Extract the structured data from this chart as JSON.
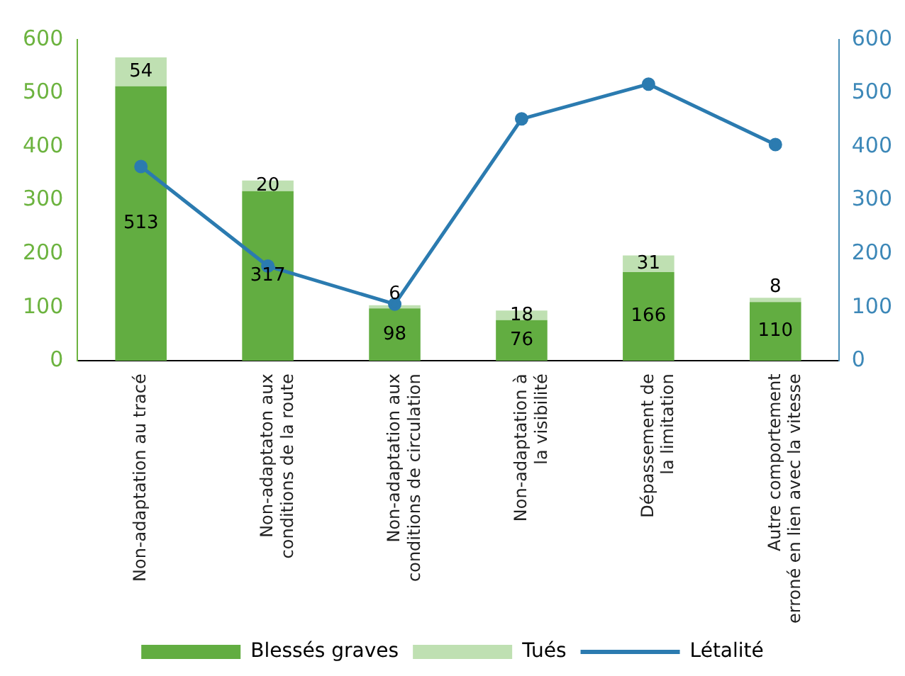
{
  "chart_data": {
    "type": "bar",
    "stacked": true,
    "categories": [
      "Non-adaptation au tracé",
      "Non-adaptaton aux\nconditions de la route",
      "Non-adaptation aux\nconditions de circulation",
      "Non-adaptation à\nla visibilité",
      "Dépassement de\nla limitation",
      "Autre comportement\nerroné en lien avec la vitesse"
    ],
    "series": [
      {
        "name": "Blessés graves",
        "color": "#62ad41",
        "values": [
          513,
          317,
          98,
          76,
          166,
          110
        ],
        "value_labels": [
          "513",
          "317",
          "98",
          "76",
          "166",
          "110"
        ]
      },
      {
        "name": "Tués",
        "color": "#bfe0b2",
        "values": [
          54,
          20,
          6,
          18,
          31,
          8
        ],
        "value_labels": [
          "54",
          "20",
          "6",
          "18",
          "31",
          "8"
        ]
      },
      {
        "name": "Létalité",
        "type": "line",
        "axis": "y2",
        "color": "#2b7bb0",
        "marker": "circle",
        "values": [
          363,
          177,
          106,
          452,
          517,
          404
        ]
      }
    ],
    "ylim": [
      0,
      600
    ],
    "yticks": [
      0,
      100,
      200,
      300,
      400,
      500,
      600
    ],
    "y2lim": [
      0,
      600
    ],
    "y2ticks": [
      0,
      100,
      200,
      300,
      400,
      500,
      600
    ],
    "grid": false,
    "legend": "bottom"
  }
}
